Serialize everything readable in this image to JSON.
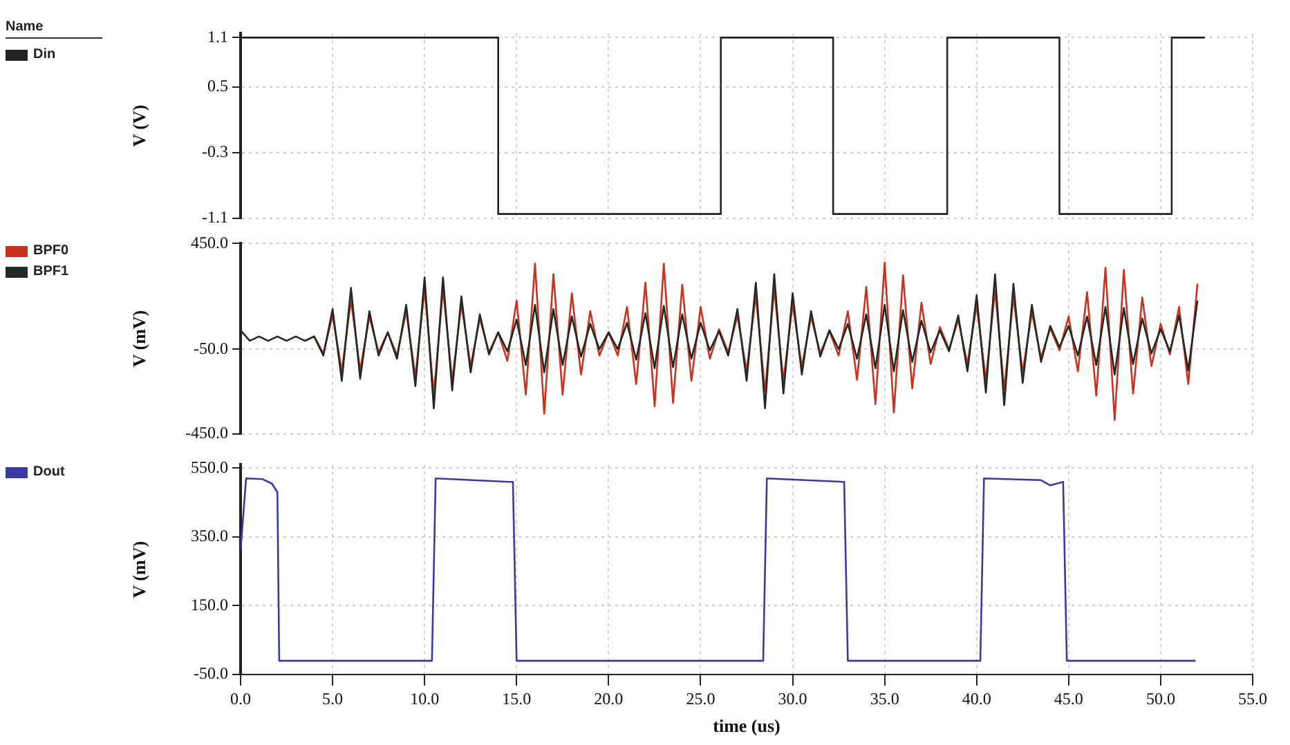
{
  "chart_data": [
    {
      "type": "line",
      "legend_title": "Name",
      "legend": "left",
      "ylabel": "V (V)",
      "tick_labels": "y",
      "grid": true,
      "marker": "none",
      "line_style": "solid",
      "xlim": [
        0,
        55
      ],
      "xticks": [
        0,
        5,
        10,
        15,
        20,
        25,
        30,
        35,
        40,
        45,
        50,
        55
      ],
      "ylim": [
        -1.1,
        1.15
      ],
      "yticks": [
        1.1,
        0.5,
        -0.3,
        -1.1
      ],
      "x": [
        0,
        14,
        14,
        26.1,
        26.1,
        32.2,
        32.2,
        38.4,
        38.4,
        44.5,
        44.5,
        50.6,
        50.6,
        52.4
      ],
      "series": [
        {
          "name": "Din",
          "color": "#222222",
          "values": [
            1.1,
            1.1,
            -1.05,
            -1.05,
            1.1,
            1.1,
            -1.05,
            -1.05,
            1.1,
            1.1,
            -1.05,
            -1.05,
            1.1,
            1.1
          ]
        }
      ]
    },
    {
      "type": "line",
      "legend": "left",
      "ylabel": "V (mV)",
      "tick_labels": "y",
      "grid": true,
      "marker": "none",
      "line_style": "solid",
      "xlim": [
        0,
        55
      ],
      "xticks": [
        0,
        5,
        10,
        15,
        20,
        25,
        30,
        35,
        40,
        45,
        50,
        55
      ],
      "ylim": [
        -450,
        450
      ],
      "yticks": [
        {
          "value": 450,
          "label": "450.0"
        },
        {
          "value": -50,
          "label": "-50.0"
        },
        {
          "value": -450,
          "label": "-450.0"
        }
      ],
      "x": [
        0,
        0.5,
        1,
        1.5,
        2,
        2.5,
        3,
        3.5,
        4,
        4.5,
        5,
        5.5,
        6,
        6.5,
        7,
        7.5,
        8,
        8.5,
        9,
        9.5,
        10,
        10.5,
        11,
        11.5,
        12,
        12.5,
        13,
        13.5,
        14,
        14.5,
        15,
        15.5,
        16,
        16.5,
        17,
        17.5,
        18,
        18.5,
        19,
        19.5,
        20,
        20.5,
        21,
        21.5,
        22,
        22.5,
        23,
        23.5,
        24,
        24.5,
        25,
        25.5,
        26,
        26.5,
        27,
        27.5,
        28,
        28.5,
        29,
        29.5,
        30,
        30.5,
        31,
        31.5,
        32,
        32.5,
        33,
        33.5,
        34,
        34.5,
        35,
        35.5,
        36,
        36.5,
        37,
        37.5,
        38,
        38.5,
        39,
        39.5,
        40,
        40.5,
        41,
        41.5,
        42,
        42.5,
        43,
        43.5,
        44,
        44.5,
        45,
        45.5,
        46,
        46.5,
        47,
        47.5,
        48,
        48.5,
        49,
        49.5,
        50,
        50.5,
        51,
        51.5,
        52
      ],
      "series": [
        {
          "name": "BPF0",
          "color": "#c8321e",
          "values": [
            null,
            null,
            null,
            null,
            null,
            null,
            null,
            -10,
            10,
            -70,
            110,
            -155,
            185,
            -150,
            105,
            -65,
            30,
            -80,
            130,
            -180,
            235,
            -265,
            235,
            -200,
            165,
            -130,
            95,
            -65,
            30,
            -105,
            180,
            -265,
            355,
            -355,
            305,
            -265,
            215,
            -170,
            130,
            -80,
            30,
            -80,
            150,
            -215,
            265,
            -320,
            355,
            -305,
            255,
            -200,
            150,
            -95,
            45,
            -65,
            110,
            -155,
            205,
            -250,
            235,
            -200,
            165,
            -135,
            105,
            -70,
            35,
            -80,
            130,
            -195,
            245,
            -310,
            360,
            -350,
            300,
            -235,
            170,
            -120,
            55,
            -50,
            90,
            -120,
            160,
            -195,
            230,
            -240,
            200,
            -160,
            125,
            -90,
            50,
            -55,
            105,
            -155,
            220,
            -270,
            335,
            -385,
            325,
            -260,
            195,
            -130,
            70,
            -75,
            150,
            -215,
            260
          ]
        },
        {
          "name": "BPF1",
          "color": "#1e2a22",
          "values": [
            40,
            -10,
            10,
            -10,
            10,
            -10,
            10,
            -10,
            10,
            -80,
            140,
            -200,
            240,
            -190,
            130,
            -80,
            30,
            -95,
            160,
            -225,
            290,
            -330,
            290,
            -245,
            200,
            -160,
            115,
            -75,
            30,
            -60,
            90,
            -125,
            160,
            -160,
            140,
            -125,
            105,
            -85,
            70,
            -50,
            30,
            -50,
            75,
            -100,
            120,
            -140,
            155,
            -135,
            115,
            -95,
            75,
            -55,
            35,
            -80,
            140,
            -200,
            265,
            -330,
            305,
            -260,
            215,
            -170,
            130,
            -85,
            40,
            -50,
            70,
            -95,
            115,
            -140,
            160,
            -155,
            135,
            -110,
            85,
            -65,
            40,
            -60,
            110,
            -155,
            205,
            -255,
            305,
            -315,
            260,
            -210,
            160,
            -110,
            60,
            -40,
            60,
            -80,
            105,
            -125,
            150,
            -170,
            145,
            -120,
            95,
            -70,
            45,
            -60,
            110,
            -150,
            180
          ]
        }
      ]
    },
    {
      "type": "line",
      "legend": "left",
      "ylabel": "V (mV)",
      "xlabel": "time (us)",
      "grid": true,
      "marker": "none",
      "line_style": "solid",
      "xlim": [
        0,
        55
      ],
      "xticks": [
        {
          "value": 0,
          "label": "0.0"
        },
        {
          "value": 5,
          "label": "5.0"
        },
        {
          "value": 10,
          "label": "10.0"
        },
        {
          "value": 15,
          "label": "15.0"
        },
        {
          "value": 20,
          "label": "20.0"
        },
        {
          "value": 25,
          "label": "25.0"
        },
        {
          "value": 30,
          "label": "30.0"
        },
        {
          "value": 35,
          "label": "35.0"
        },
        {
          "value": 40,
          "label": "40.0"
        },
        {
          "value": 45,
          "label": "45.0"
        },
        {
          "value": 50,
          "label": "50.0"
        },
        {
          "value": 55,
          "label": "55.0"
        }
      ],
      "ylim": [
        -50,
        560
      ],
      "yticks": [
        {
          "value": 550,
          "label": "550.0"
        },
        {
          "value": 350,
          "label": "350.0"
        },
        {
          "value": 150,
          "label": "150.0"
        },
        {
          "value": -50,
          "label": "-50.0"
        }
      ],
      "x": [
        0,
        0.3,
        1.2,
        1.7,
        2.0,
        2.1,
        10.4,
        10.6,
        14.6,
        14.8,
        15.0,
        28.4,
        28.6,
        32.8,
        33.0,
        40.2,
        40.4,
        43.5,
        44.0,
        44.7,
        44.9,
        51.9
      ],
      "series": [
        {
          "name": "Dout",
          "color": "#3a3aa0",
          "values": [
            310,
            520,
            518,
            505,
            480,
            -10,
            -10,
            520,
            510,
            510,
            -10,
            -10,
            520,
            510,
            -10,
            -10,
            520,
            515,
            500,
            510,
            -10,
            -10
          ]
        }
      ]
    }
  ]
}
